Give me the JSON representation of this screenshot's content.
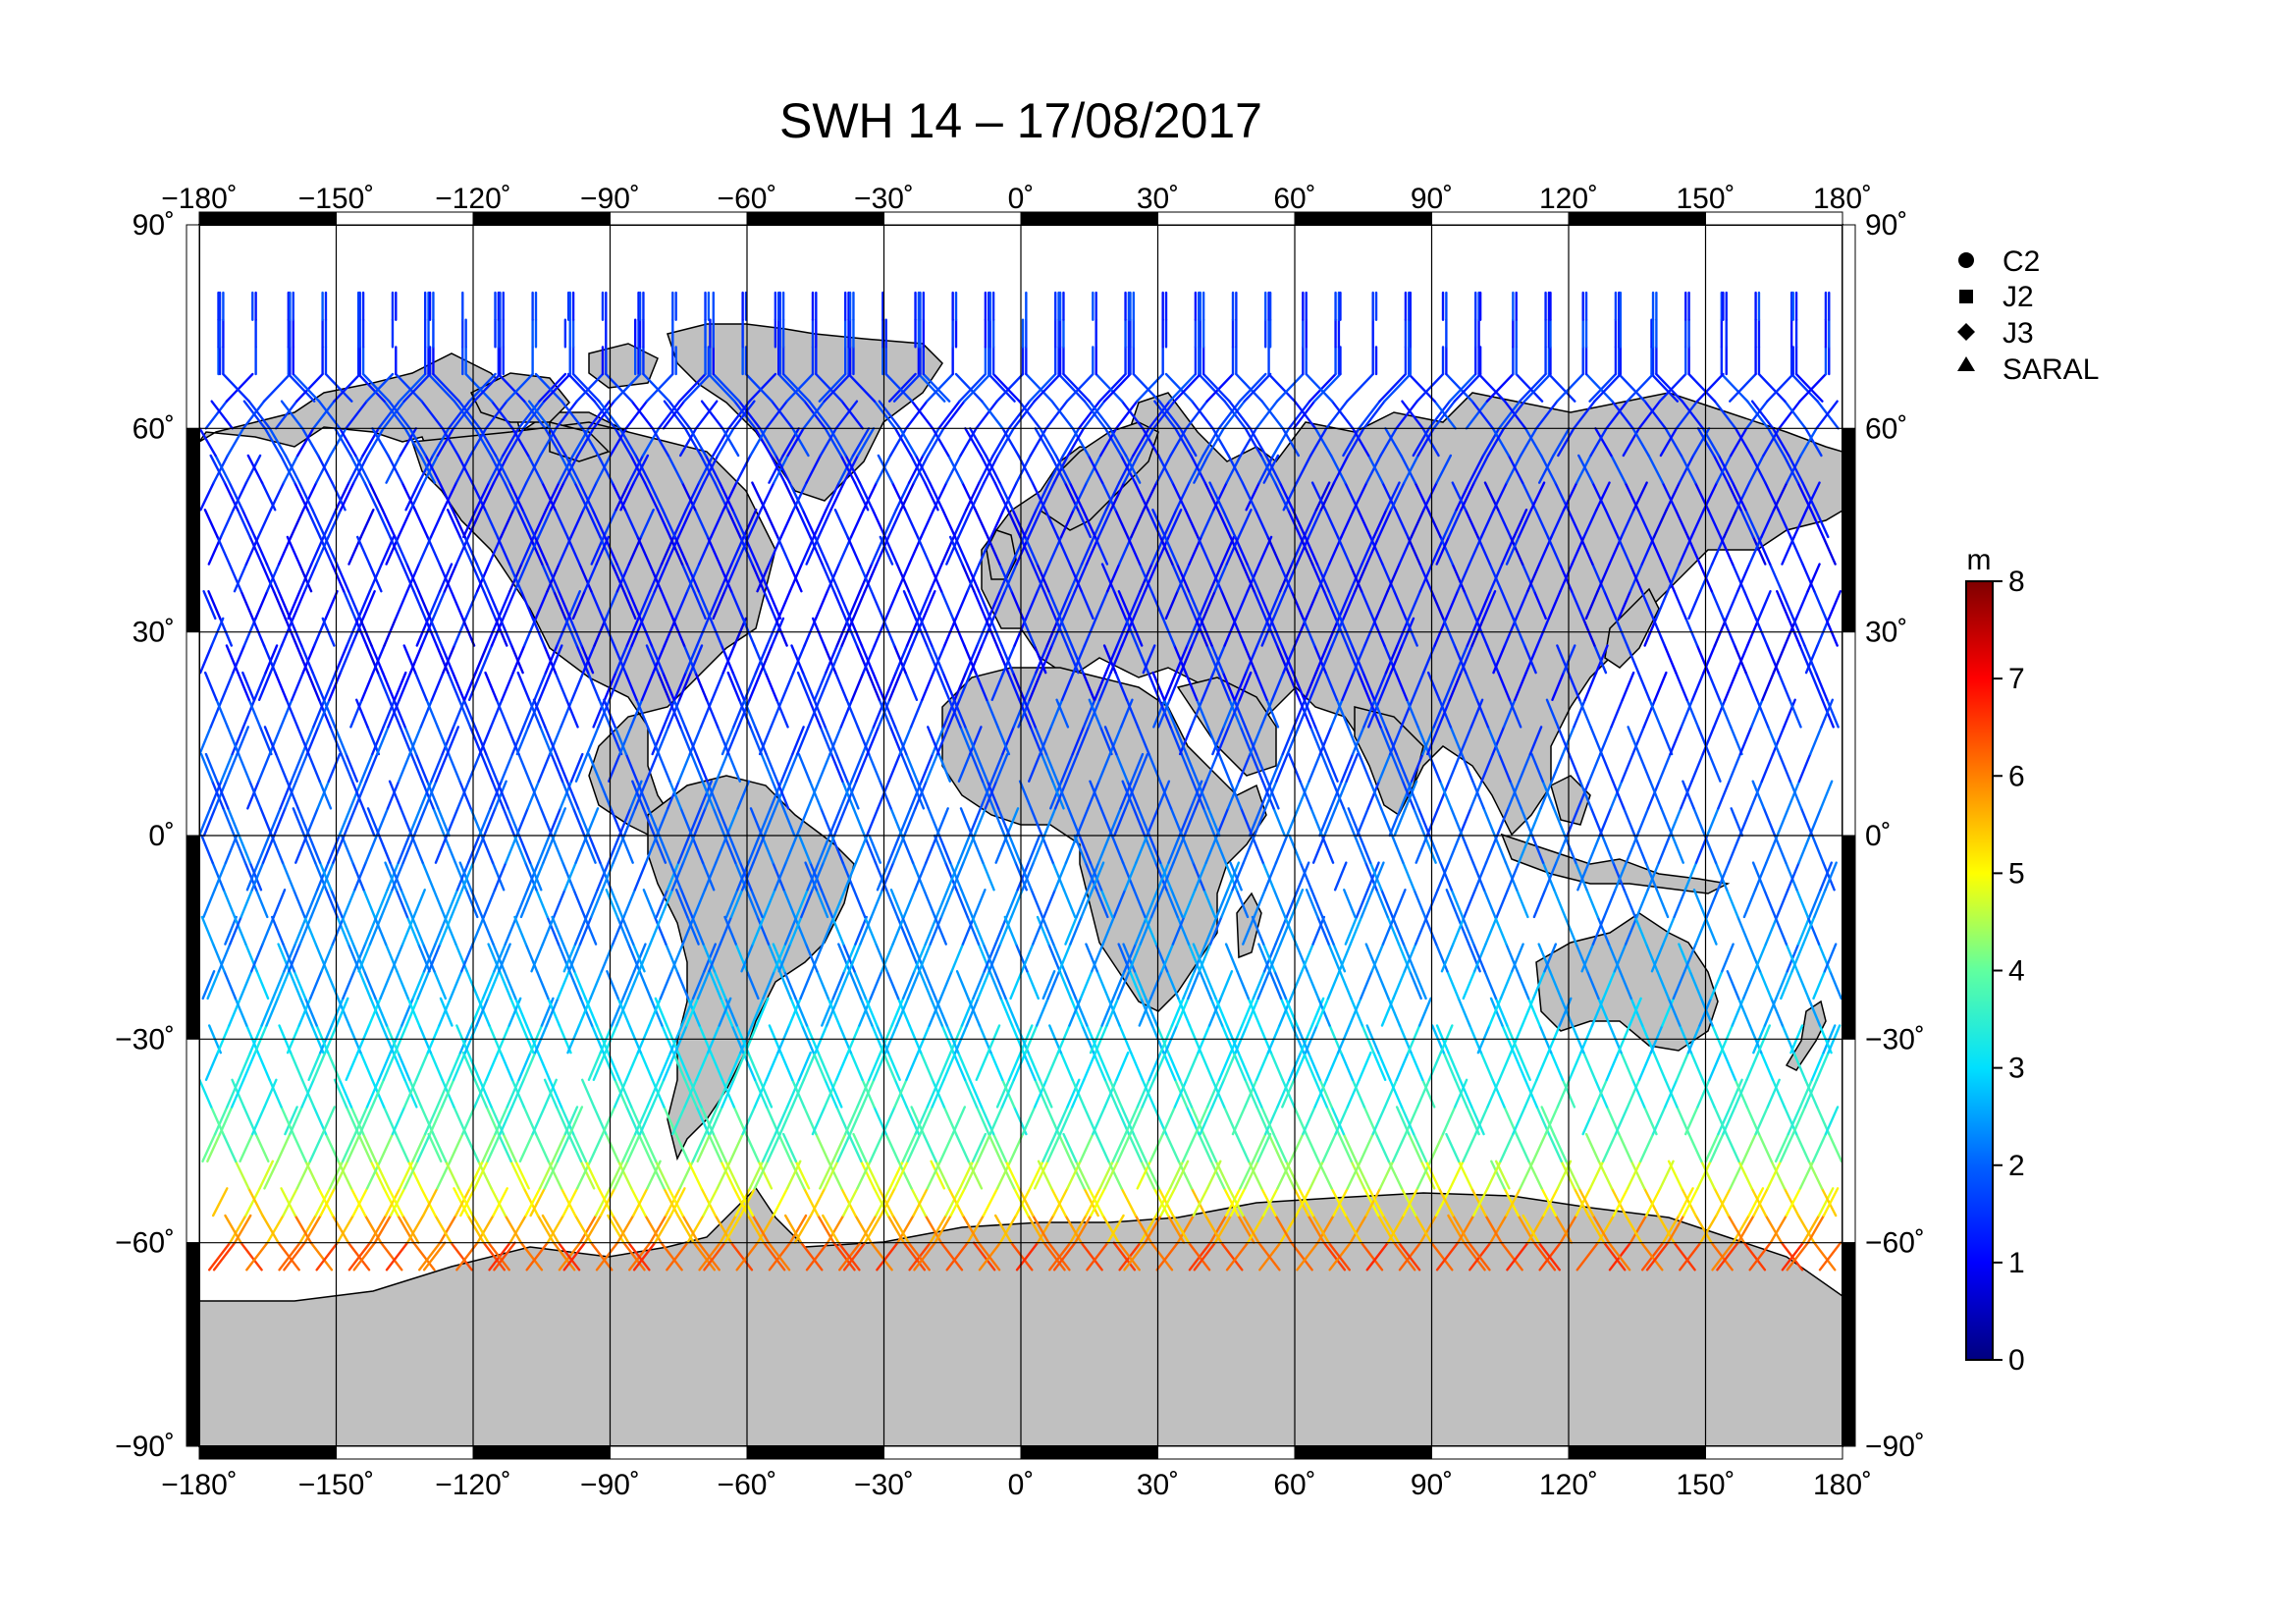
{
  "title": "SWH 14 – 17/08/2017",
  "lon_ticks": [
    "−180˚",
    "−150˚",
    "−120˚",
    "−90˚",
    "−60˚",
    "−30˚",
    "0˚",
    "30˚",
    "60˚",
    "90˚",
    "120˚",
    "150˚",
    "180˚"
  ],
  "lat_ticks": [
    "90˚",
    "60˚",
    "30˚",
    "0˚",
    "−30˚",
    "−60˚",
    "−90˚"
  ],
  "legend": [
    {
      "label": "C2",
      "marker": "circle"
    },
    {
      "label": "J2",
      "marker": "square"
    },
    {
      "label": "J3",
      "marker": "diamond"
    },
    {
      "label": "SARAL",
      "marker": "triangle"
    }
  ],
  "colorbar": {
    "unit": "m",
    "ticks": [
      "0",
      "1",
      "2",
      "3",
      "4",
      "5",
      "6",
      "7",
      "8"
    ],
    "range": [
      0,
      8
    ],
    "colors": [
      "#00007f",
      "#0000ff",
      "#007fff",
      "#00ffff",
      "#7fff7f",
      "#ffff00",
      "#ff7f00",
      "#ff0000",
      "#7f0000"
    ]
  },
  "map": {
    "projection": "equirectangular",
    "lon_range": [
      -180,
      180
    ],
    "lat_range": [
      -90,
      90
    ],
    "grid_step_deg": 30,
    "land_color": "#c0c0c0",
    "ocean_color": "#ffffff"
  }
}
